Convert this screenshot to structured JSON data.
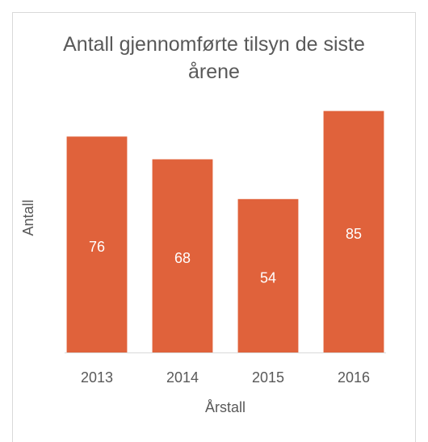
{
  "chart_data": {
    "type": "bar",
    "title": "Antall gjennomførte tilsyn de siste årene",
    "x_label": "Årstall",
    "y_label": "Antall",
    "categories": [
      "2013",
      "2014",
      "2015",
      "2016"
    ],
    "values": [
      76,
      68,
      54,
      85
    ],
    "color": "#e0623b",
    "ylim": [
      0,
      90
    ],
    "grid": false
  }
}
